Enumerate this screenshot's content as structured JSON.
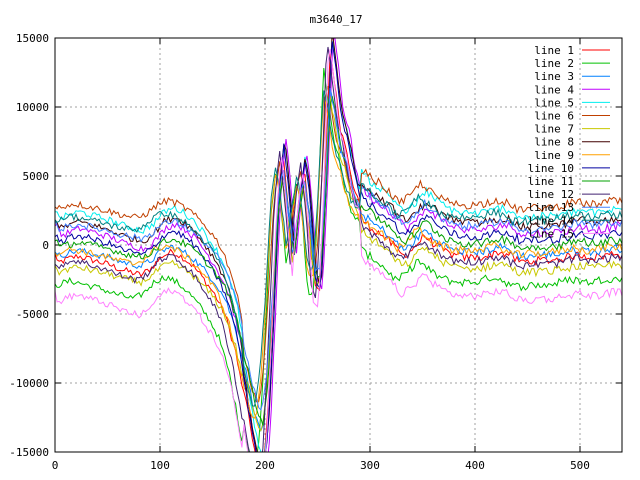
{
  "chart_data": {
    "type": "line",
    "title": "m3640_17",
    "xlabel": "",
    "ylabel": "",
    "xlim": [
      0,
      540
    ],
    "ylim": [
      -15000,
      15000
    ],
    "xticks": [
      0,
      100,
      200,
      300,
      400,
      500
    ],
    "yticks": [
      -15000,
      -10000,
      -5000,
      0,
      5000,
      10000,
      15000
    ],
    "grid": true,
    "legend_position": "top-right",
    "series": [
      {
        "name": "line 1",
        "color": "#ff0000",
        "offset": -800
      },
      {
        "name": "line 2",
        "color": "#00c000",
        "offset": -2600
      },
      {
        "name": "line 3",
        "color": "#0080ff",
        "offset": -400
      },
      {
        "name": "line 4",
        "color": "#c000ff",
        "offset": 1200
      },
      {
        "name": "line 5",
        "color": "#00eeee",
        "offset": 2400
      },
      {
        "name": "line 6",
        "color": "#c04000",
        "offset": 3000
      },
      {
        "name": "line 7",
        "color": "#c8c800",
        "offset": -1600
      },
      {
        "name": "line 8",
        "color": "#400000",
        "offset": 1700
      },
      {
        "name": "line 9",
        "color": "#ffa000",
        "offset": -300
      },
      {
        "name": "line 10",
        "color": "#0000a0",
        "offset": 700
      },
      {
        "name": "line 11",
        "color": "#00a000",
        "offset": 200
      },
      {
        "name": "line 12",
        "color": "#402070",
        "offset": -1100
      },
      {
        "name": "line 13",
        "color": "#4080ff",
        "offset": 1500
      },
      {
        "name": "line 14",
        "color": "#008080",
        "offset": 2100
      },
      {
        "name": "line 15",
        "color": "#ff80ff",
        "offset": -3600
      }
    ],
    "shape_x": [
      0,
      10,
      20,
      30,
      40,
      50,
      60,
      70,
      80,
      90,
      100,
      110,
      120,
      130,
      140,
      150,
      160,
      170,
      180,
      190,
      195,
      200,
      205,
      210,
      215,
      220,
      225,
      230,
      235,
      240,
      245,
      250,
      255,
      260,
      265,
      270,
      275,
      280,
      285,
      290,
      300,
      310,
      320,
      330,
      340,
      350,
      360,
      370,
      380,
      390,
      400,
      410,
      420,
      430,
      440,
      450,
      460,
      470,
      480,
      490,
      500,
      510,
      520,
      530,
      540
    ],
    "shape_y": [
      -500,
      -200,
      0,
      -200,
      -400,
      -600,
      -900,
      -1100,
      -1300,
      -800,
      0,
      300,
      -100,
      -700,
      -1600,
      -2600,
      -4000,
      -6500,
      -10500,
      -14500,
      -15500,
      -12000,
      -5000,
      3000,
      6500,
      3000,
      -1000,
      3000,
      5500,
      2500,
      -2500,
      -3000,
      4000,
      13500,
      11000,
      8000,
      7000,
      5000,
      3500,
      2700,
      2000,
      1500,
      800,
      0,
      600,
      1500,
      800,
      300,
      0,
      -100,
      -100,
      0,
      300,
      100,
      -400,
      -400,
      -300,
      -300,
      -200,
      0,
      100,
      -100,
      0,
      200,
      100
    ]
  }
}
